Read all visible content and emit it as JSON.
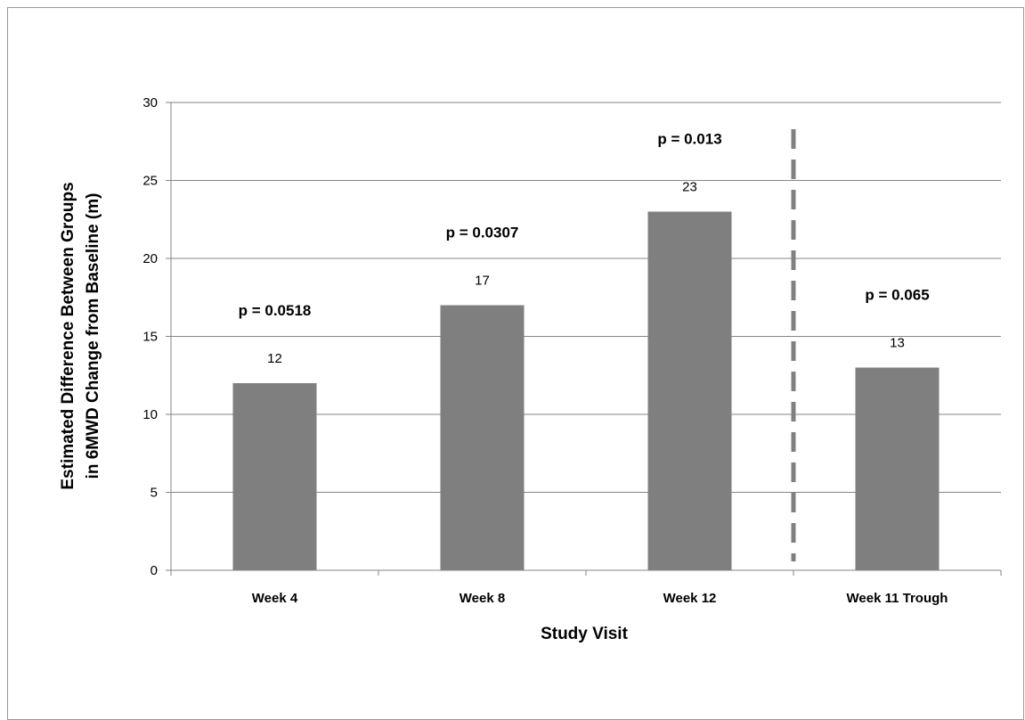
{
  "chart_data": {
    "type": "bar",
    "title": "",
    "xlabel": "Study Visit",
    "ylabel": [
      "Estimated Difference Between Groups",
      "in 6MWD Change from Baseline (m)"
    ],
    "ylim": [
      0,
      30
    ],
    "yticks": [
      0,
      5,
      10,
      15,
      20,
      25,
      30
    ],
    "categories": [
      "Week 4",
      "Week 8",
      "Week 12",
      "Week 11 Trough"
    ],
    "values": [
      12,
      17,
      23,
      13
    ],
    "data_labels": [
      "12",
      "17",
      "23",
      "13"
    ],
    "annotations": [
      "p = 0.0518",
      "p = 0.0307",
      "p = 0.013",
      "p = 0.065"
    ],
    "separator_after_category": "Week 12",
    "grid": true,
    "legend": "none",
    "colors": {
      "bar": "#7f7f7f",
      "grid": "#868686",
      "axis": "#868686",
      "separator": "#808080",
      "text": "#000000"
    }
  }
}
